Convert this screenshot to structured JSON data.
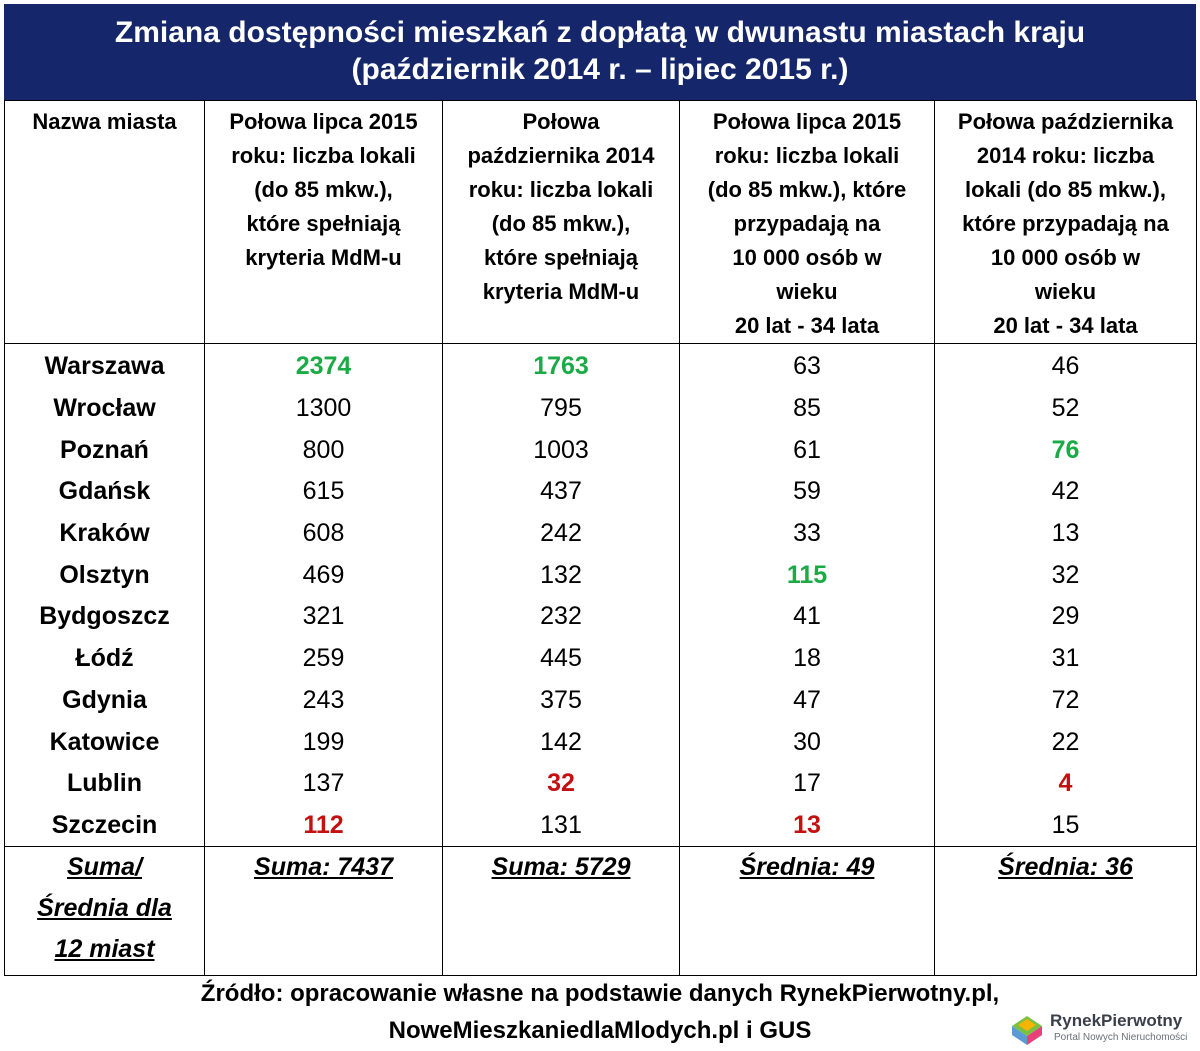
{
  "title": {
    "line1": "Zmiana dostępności mieszkań z dopłatą w dwunastu miastach kraju",
    "line2": "(październik 2014 r. – lipiec 2015 r.)"
  },
  "headers": {
    "city": "Nazwa miasta",
    "col2": [
      "Połowa lipca 2015",
      "roku: liczba lokali",
      "(do 85 mkw.),",
      "które spełniają",
      "kryteria MdM-u"
    ],
    "col3": [
      "Połowa",
      "października 2014",
      "roku: liczba lokali",
      "(do 85 mkw.),",
      "które spełniają",
      "kryteria MdM-u"
    ],
    "col4": [
      "Połowa lipca 2015",
      "roku: liczba lokali",
      "(do 85 mkw.), które",
      "przypadają na",
      "10 000 osób w",
      "wieku",
      "20 lat - 34 lata"
    ],
    "col5": [
      "Połowa października",
      "2014 roku: liczba",
      "lokali (do 85 mkw.),",
      "które przypadają na",
      "10 000 osób w",
      "wieku",
      "20 lat - 34 lata"
    ]
  },
  "rows": [
    {
      "city": "Warszawa",
      "v1": "2374",
      "v2": "1763",
      "v3": "63",
      "v4": "46"
    },
    {
      "city": "Wrocław",
      "v1": "1300",
      "v2": "795",
      "v3": "85",
      "v4": "52"
    },
    {
      "city": "Poznań",
      "v1": "800",
      "v2": "1003",
      "v3": "61",
      "v4": "76"
    },
    {
      "city": "Gdańsk",
      "v1": "615",
      "v2": "437",
      "v3": "59",
      "v4": "42"
    },
    {
      "city": "Kraków",
      "v1": "608",
      "v2": "242",
      "v3": "33",
      "v4": "13"
    },
    {
      "city": "Olsztyn",
      "v1": "469",
      "v2": "132",
      "v3": "115",
      "v4": "32"
    },
    {
      "city": "Bydgoszcz",
      "v1": "321",
      "v2": "232",
      "v3": "41",
      "v4": "29"
    },
    {
      "city": "Łódź",
      "v1": "259",
      "v2": "445",
      "v3": "18",
      "v4": "31"
    },
    {
      "city": "Gdynia",
      "v1": "243",
      "v2": "375",
      "v3": "47",
      "v4": "72"
    },
    {
      "city": "Katowice",
      "v1": "199",
      "v2": "142",
      "v3": "30",
      "v4": "22"
    },
    {
      "city": "Lublin",
      "v1": "137",
      "v2": "32",
      "v3": "17",
      "v4": "4"
    },
    {
      "city": "Szczecin",
      "v1": "112",
      "v2": "131",
      "v3": "13",
      "v4": "15"
    }
  ],
  "highlight_colors": {
    "max": "#1aaa46",
    "min": "#c41010",
    "title_bg": "#15276a"
  },
  "summary": {
    "label": [
      "Suma/",
      "Średnia dla",
      "12 miast"
    ],
    "v1": "Suma: 7437",
    "v2": "Suma: 5729",
    "v3": "Średnia: 49",
    "v4": "Średnia: 36"
  },
  "source": {
    "line1": "Źródło: opracowanie własne na podstawie danych RynekPierwotny.pl,",
    "line2": "NoweMieszkaniedlaMlodych.pl i GUS"
  },
  "logo": {
    "name": "RynekPierwotny",
    "tagline": "Portal Nowych Nieruchomości"
  }
}
